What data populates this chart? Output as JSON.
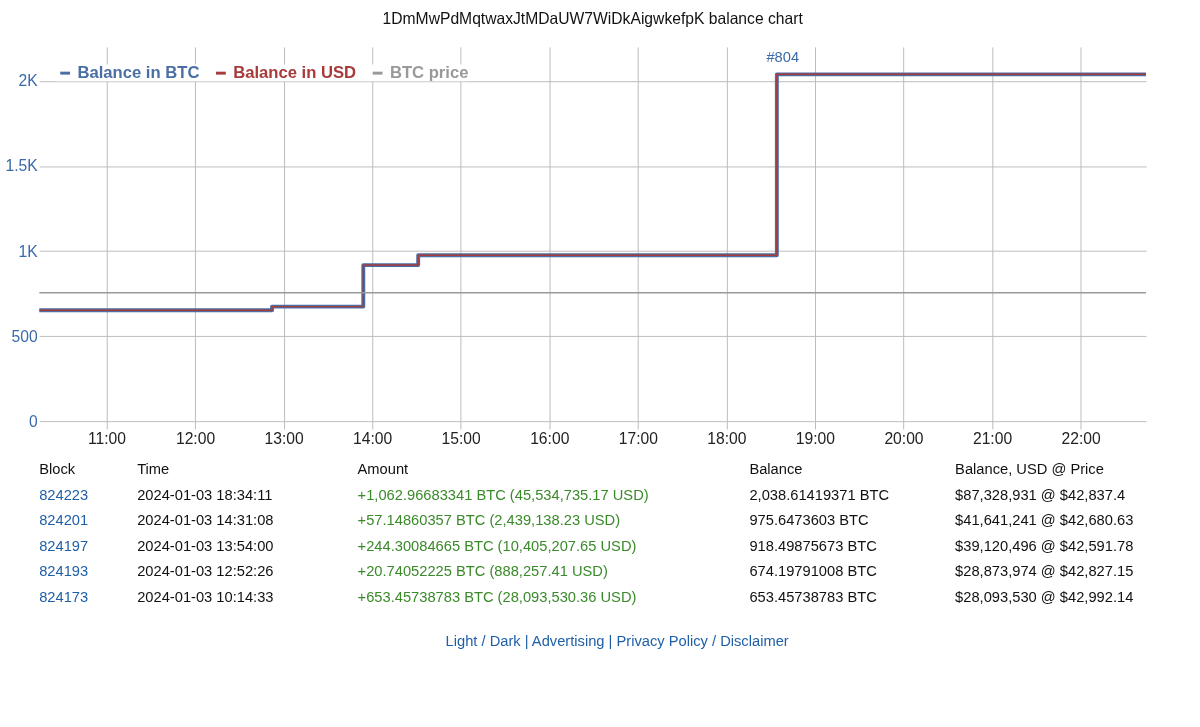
{
  "chart_data": {
    "type": "step",
    "title": "1DmMwPdMqtwaxJtMDaUW7WiDkAigwkefpK balance chart",
    "series": [
      {
        "name": "Balance in BTC",
        "color": "#4a6fa5",
        "x": [
          10.24,
          12.87,
          13.9,
          14.52,
          18.57,
          22.74
        ],
        "values": [
          653,
          674,
          918,
          976,
          2039,
          2039
        ]
      },
      {
        "name": "Balance in USD",
        "color": "#a83a3a",
        "x": [
          10.24,
          12.87,
          13.9,
          14.52,
          18.57,
          22.74
        ],
        "values": [
          653,
          674,
          918,
          976,
          2039,
          2039
        ]
      },
      {
        "name": "BTC price",
        "color": "#999999",
        "x": [
          10.24,
          22.74
        ],
        "values": [
          755,
          755
        ]
      }
    ],
    "xlim": [
      10.24,
      22.74
    ],
    "xticks": [
      {
        "value": 11,
        "label": "11:00"
      },
      {
        "value": 12,
        "label": "12:00"
      },
      {
        "value": 13,
        "label": "13:00"
      },
      {
        "value": 14,
        "label": "14:00"
      },
      {
        "value": 15,
        "label": "15:00"
      },
      {
        "value": 16,
        "label": "16:00"
      },
      {
        "value": 17,
        "label": "17:00"
      },
      {
        "value": 18,
        "label": "18:00"
      },
      {
        "value": 19,
        "label": "19:00"
      },
      {
        "value": 20,
        "label": "20:00"
      },
      {
        "value": 21,
        "label": "21:00"
      },
      {
        "value": 22,
        "label": "22:00"
      }
    ],
    "ylim": [
      -45,
      2200
    ],
    "yticks": [
      0,
      500,
      {
        "value": 1000,
        "label": "1K"
      },
      {
        "value": 1500,
        "label": "1.5K"
      },
      {
        "value": 2000,
        "label": "2K"
      }
    ],
    "grid": true,
    "legend": "top left",
    "marker": "none",
    "line_style": "solid",
    "annotations": [
      {
        "text": "#804",
        "x": 18.57,
        "y": 2039
      },
      "Block",
      "Time",
      "Amount",
      "Balance",
      "Balance, USD @ Price",
      "824223",
      "2024-01-03 18:34:11",
      "+1,062.96683341 BTC (45,534,735.17 USD)",
      "2,038.61419371 BTC",
      "$87,328,931 @ $42,837.4",
      "824201",
      "2024-01-03 14:31:08",
      "+57.14860357 BTC (2,439,138.23 USD)",
      "975.6473603 BTC",
      "$41,641,241 @ $42,680.63",
      "824197",
      "2024-01-03 13:54:00",
      "+244.30084665 BTC (10,405,207.65 USD)",
      "918.49875673 BTC",
      "$39,120,496 @ $42,591.78",
      "824193",
      "2024-01-03 12:52:26",
      "+20.74052225 BTC (888,257.41 USD)",
      "674.19791008 BTC",
      "$28,873,974 @ $42,827.15",
      "824173",
      "2024-01-03 10:14:33",
      "+653.45738783 BTC (28,093,530.36 USD)",
      "653.45738783 BTC",
      "$28,093,530 @ $42,992.14",
      "Light / Dark | Advertising | Privacy Policy / Disclaimer"
    ]
  }
}
